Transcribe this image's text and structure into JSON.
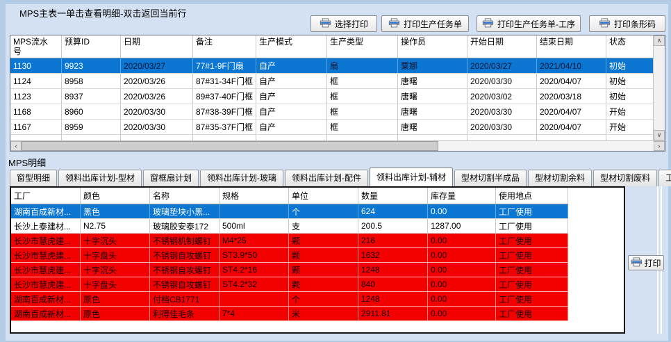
{
  "window": {
    "main_section_title": "MPS主表一单击查看明细-双击返回当前行",
    "detail_section_title": "MPS明细"
  },
  "toolbar": {
    "buttons": [
      {
        "icon": "printer-icon",
        "label": "选择打印"
      },
      {
        "icon": "printer-icon",
        "label": "打印生产任务单"
      },
      {
        "icon": "printer-icon",
        "label": "打印生产任务单-工序"
      },
      {
        "icon": "printer-icon",
        "label": "打印条形码"
      }
    ]
  },
  "detail_toolbar": {
    "print_button": {
      "icon": "printer-icon",
      "label": "打印"
    }
  },
  "detail_tabs": {
    "items": [
      "窗型明细",
      "领料出库计划-型材",
      "窗框扇计划",
      "领料出库计划-玻璃",
      "领料出库计划-配件",
      "领料出库计划-辅材",
      "型材切割半成品",
      "型材切割余料",
      "型材切割废料",
      "工序"
    ],
    "active": "领料出库计划-辅材",
    "active_index": 5
  },
  "tables": {
    "mps_main": {
      "columns": [
        "MPS流水号",
        "预算ID",
        "日期",
        "备注",
        "生产模式",
        "生产类型",
        "操作员",
        "开始日期",
        "结束日期",
        "状态"
      ],
      "rows": [
        {
          "state": "selected",
          "cells": [
            "1130",
            "9923",
            "2020/03/27",
            "77#1-9F门扇",
            "自产",
            "扇",
            "粟娜",
            "2020/03/27",
            "2021/04/10",
            "初始"
          ]
        },
        {
          "state": "normal",
          "cells": [
            "1124",
            "8958",
            "2020/03/26",
            "87#31-34F门框",
            "自产",
            "框",
            "唐曙",
            "2020/03/30",
            "2020/04/07",
            "初始"
          ]
        },
        {
          "state": "normal",
          "cells": [
            "1123",
            "8937",
            "2020/03/26",
            "89#37-40F门框",
            "自产",
            "框",
            "唐曙",
            "2020/03/02",
            "2020/03/18",
            "初始"
          ]
        },
        {
          "state": "normal",
          "cells": [
            "1168",
            "8960",
            "2020/03/30",
            "87#38-39F门框",
            "自产",
            "框",
            "唐曙",
            "2020/03/30",
            "2020/04/07",
            "开始"
          ]
        },
        {
          "state": "normal",
          "cells": [
            "1167",
            "8959",
            "2020/03/30",
            "87#35-37F门框",
            "自产",
            "框",
            "唐曙",
            "2020/03/30",
            "2020/04/07",
            "开始"
          ]
        },
        {
          "state": "partial",
          "cells": [
            "",
            "",
            "",
            "",
            "",
            "",
            "",
            "",
            "",
            ""
          ]
        }
      ]
    },
    "mps_detail": {
      "columns": [
        "工厂",
        "颜色",
        "名称",
        "规格",
        "单位",
        "数量",
        "库存量",
        "使用地点"
      ],
      "rows": [
        {
          "state": "selected",
          "cells": [
            "湖南百成新材...",
            "黑色",
            "玻璃垫块小黑...",
            "",
            "个",
            "624",
            "0.00",
            "工厂使用"
          ]
        },
        {
          "state": "normal",
          "cells": [
            "长沙上泰建材...",
            "N2.75",
            "玻璃胶安泰172",
            "500ml",
            "支",
            "200.5",
            "1287.00",
            "工厂使用"
          ]
        },
        {
          "state": "shortage",
          "cells": [
            "长沙市慧虎建...",
            "十字沉头",
            "不锈钢机制螺钉",
            "M4*25",
            "颗",
            "216",
            "0.00",
            "工厂使用"
          ]
        },
        {
          "state": "shortage",
          "cells": [
            "长沙市慧虎建...",
            "十字盘头",
            "不锈钢自攻螺钉",
            "ST3.9*50",
            "颗",
            "1632",
            "0.00",
            "工厂使用"
          ]
        },
        {
          "state": "shortage",
          "cells": [
            "长沙市慧虎建...",
            "十字沉头",
            "不锈钢自攻螺钉",
            "ST4.2*16",
            "颗",
            "1248",
            "0.00",
            "工厂使用"
          ]
        },
        {
          "state": "shortage",
          "cells": [
            "长沙市慧虎建...",
            "十字盘头",
            "不锈钢自攻螺钉",
            "ST4.2*32",
            "颗",
            "840",
            "0.00",
            "工厂使用"
          ]
        },
        {
          "state": "shortage",
          "cells": [
            "湖南百成新材...",
            "原色",
            "付档CB1771",
            "",
            "个",
            "1248",
            "0.00",
            "工厂使用"
          ]
        },
        {
          "state": "shortage",
          "cells": [
            "湖南百成新材...",
            "原色",
            "利得佳毛条",
            "7*4",
            "米",
            "2911.81",
            "0.00",
            "工厂使用"
          ]
        }
      ]
    }
  },
  "colors": {
    "window_background": "#d3e1f2",
    "selected_row": "#0b77d3",
    "selected_row_text": "#ffffff",
    "shortage_row": "#f30000",
    "grid_background": "#ffffff"
  },
  "scrollbars": {
    "top_table_horizontal": {
      "left_arrow": "‹",
      "right_arrow": "›"
    },
    "top_table_vertical": {
      "up_arrow": "∧",
      "down_arrow": "∨"
    }
  }
}
